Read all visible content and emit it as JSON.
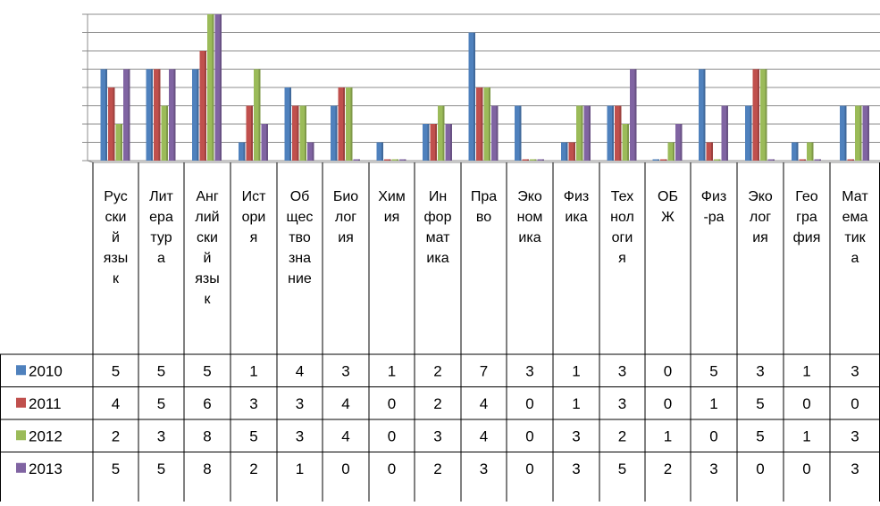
{
  "chart_data": {
    "type": "bar",
    "title": "",
    "xlabel": "",
    "ylabel": "",
    "ylim": [
      0,
      8
    ],
    "grid": true,
    "legend_placement": "data-table-left",
    "categories": [
      "Русский язык",
      "Литература",
      "Английский язык",
      "История",
      "Обществознание",
      "Биология",
      "Химия",
      "Информатика",
      "Право",
      "Экономика",
      "Физика",
      "Технология",
      "ОБЖ",
      "Физ-ра",
      "Экология",
      "География",
      "Математика"
    ],
    "category_label_lines": [
      [
        "Рус",
        "ски",
        "й",
        "язы",
        "к"
      ],
      [
        "Лит",
        "ера",
        "тур",
        "а"
      ],
      [
        "Анг",
        "лий",
        "ски",
        "й",
        "язы",
        "к"
      ],
      [
        "Ист",
        "ори",
        "я"
      ],
      [
        "Об",
        "щес",
        "тво",
        "зна",
        "ние"
      ],
      [
        "Био",
        "лог",
        "ия"
      ],
      [
        "Хим",
        "ия"
      ],
      [
        "Ин",
        "фор",
        "мат",
        "ика"
      ],
      [
        "Пра",
        "во"
      ],
      [
        "Эко",
        "ном",
        "ика"
      ],
      [
        "Физ",
        "ика"
      ],
      [
        "Тех",
        "нол",
        "оги",
        "я"
      ],
      [
        "ОБ",
        "Ж"
      ],
      [
        "Физ",
        "-ра"
      ],
      [
        "Эко",
        "лог",
        "ия"
      ],
      [
        "Гео",
        "гра",
        "фия"
      ],
      [
        "Мат",
        "ема",
        "тик",
        "а"
      ]
    ],
    "series": [
      {
        "name": "2010",
        "color": "#4F81BD",
        "values": [
          5,
          5,
          5,
          1,
          4,
          3,
          1,
          2,
          7,
          3,
          1,
          3,
          0,
          5,
          3,
          1,
          3
        ]
      },
      {
        "name": "2011",
        "color": "#C0504D",
        "values": [
          4,
          5,
          6,
          3,
          3,
          4,
          0,
          2,
          4,
          0,
          1,
          3,
          0,
          1,
          5,
          0,
          0
        ]
      },
      {
        "name": "2012",
        "color": "#9BBB59",
        "values": [
          2,
          3,
          8,
          5,
          3,
          4,
          0,
          3,
          4,
          0,
          3,
          2,
          1,
          0,
          5,
          1,
          3
        ]
      },
      {
        "name": "2013",
        "color": "#8064A2",
        "values": [
          5,
          5,
          8,
          2,
          1,
          0,
          0,
          2,
          3,
          0,
          3,
          5,
          2,
          3,
          0,
          0,
          3
        ]
      }
    ]
  }
}
